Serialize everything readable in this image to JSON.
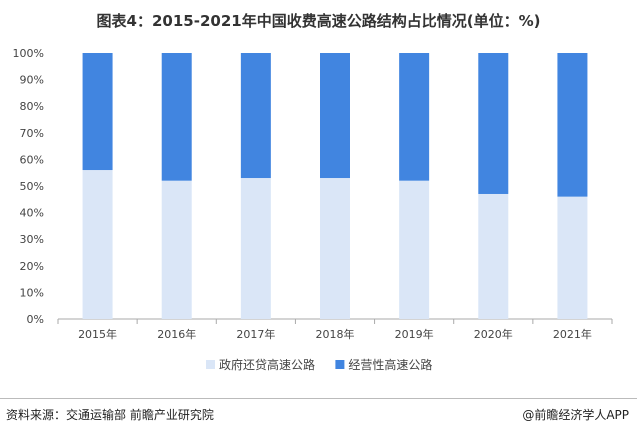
{
  "chart_data": {
    "type": "bar",
    "stacked": true,
    "title": "图表4：2015-2021年中国收费高速公路结构占比情况(单位：%)",
    "categories": [
      "2015年",
      "2016年",
      "2017年",
      "2018年",
      "2019年",
      "2020年",
      "2021年"
    ],
    "series": [
      {
        "name": "政府还贷高速公路",
        "values": [
          56,
          52,
          53,
          53,
          52,
          47,
          46
        ],
        "color": "#dae6f7"
      },
      {
        "name": "经营性高速公路",
        "values": [
          44,
          48,
          47,
          47,
          48,
          53,
          54
        ],
        "color": "#4185e0"
      }
    ],
    "yticks": [
      "0%",
      "10%",
      "20%",
      "30%",
      "40%",
      "50%",
      "60%",
      "70%",
      "80%",
      "90%",
      "100%"
    ],
    "ylim": [
      0,
      100
    ],
    "grid": false,
    "legend_placement": "bottom"
  },
  "footer": {
    "source": "资料来源：交通运输部 前瞻产业研究院",
    "brand": "@前瞻经济学人APP"
  }
}
